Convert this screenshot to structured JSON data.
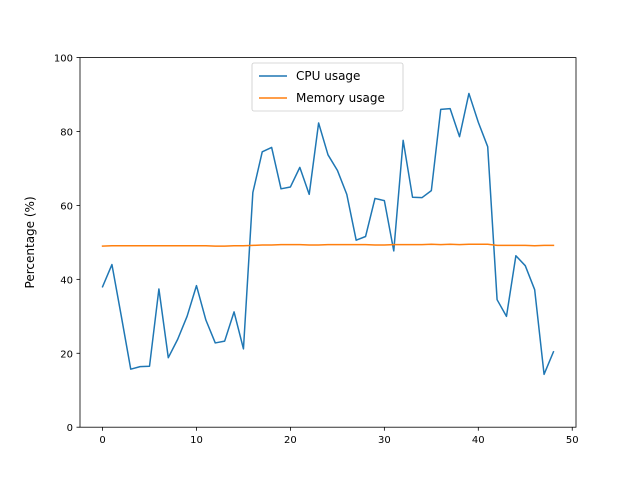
{
  "chart_data": {
    "type": "line",
    "title": "",
    "xlabel": "",
    "ylabel": "Percentage (%)",
    "xlim": [
      -2.4,
      50.4
    ],
    "ylim": [
      0,
      100
    ],
    "x_ticks": [
      0,
      10,
      20,
      30,
      40,
      50
    ],
    "y_ticks": [
      0,
      20,
      40,
      60,
      80,
      100
    ],
    "grid": false,
    "legend_position": "upper-center",
    "x": [
      0,
      1,
      2,
      3,
      4,
      5,
      6,
      7,
      8,
      9,
      10,
      11,
      12,
      13,
      14,
      15,
      16,
      17,
      18,
      19,
      20,
      21,
      22,
      23,
      24,
      25,
      26,
      27,
      28,
      29,
      30,
      31,
      32,
      33,
      34,
      35,
      36,
      37,
      38,
      39,
      40,
      41,
      42,
      43,
      44,
      45,
      46,
      47,
      48
    ],
    "series": [
      {
        "name": "CPU usage",
        "color": "#1f77b4",
        "values": [
          38.0,
          44.0,
          30.0,
          15.7,
          16.4,
          16.5,
          37.4,
          18.8,
          23.8,
          30.0,
          38.3,
          29.0,
          22.8,
          23.3,
          31.2,
          21.2,
          63.5,
          74.5,
          75.7,
          64.5,
          65.0,
          70.3,
          63.0,
          82.3,
          73.7,
          69.5,
          63.0,
          50.6,
          51.6,
          61.9,
          61.3,
          47.7,
          77.6,
          62.2,
          62.1,
          64.0,
          86.0,
          86.2,
          78.6,
          90.3,
          82.5,
          75.9,
          34.5,
          30.0,
          46.4,
          43.7,
          37.2,
          14.3,
          20.4
        ]
      },
      {
        "name": "Memory usage",
        "color": "#ff7f0e",
        "values": [
          49.0,
          49.1,
          49.1,
          49.1,
          49.1,
          49.1,
          49.1,
          49.1,
          49.1,
          49.1,
          49.1,
          49.1,
          49.0,
          49.0,
          49.1,
          49.1,
          49.2,
          49.3,
          49.3,
          49.4,
          49.4,
          49.4,
          49.3,
          49.3,
          49.4,
          49.4,
          49.4,
          49.4,
          49.4,
          49.3,
          49.3,
          49.4,
          49.4,
          49.4,
          49.4,
          49.5,
          49.4,
          49.5,
          49.4,
          49.5,
          49.5,
          49.5,
          49.2,
          49.2,
          49.2,
          49.2,
          49.1,
          49.2,
          49.2
        ]
      }
    ]
  }
}
